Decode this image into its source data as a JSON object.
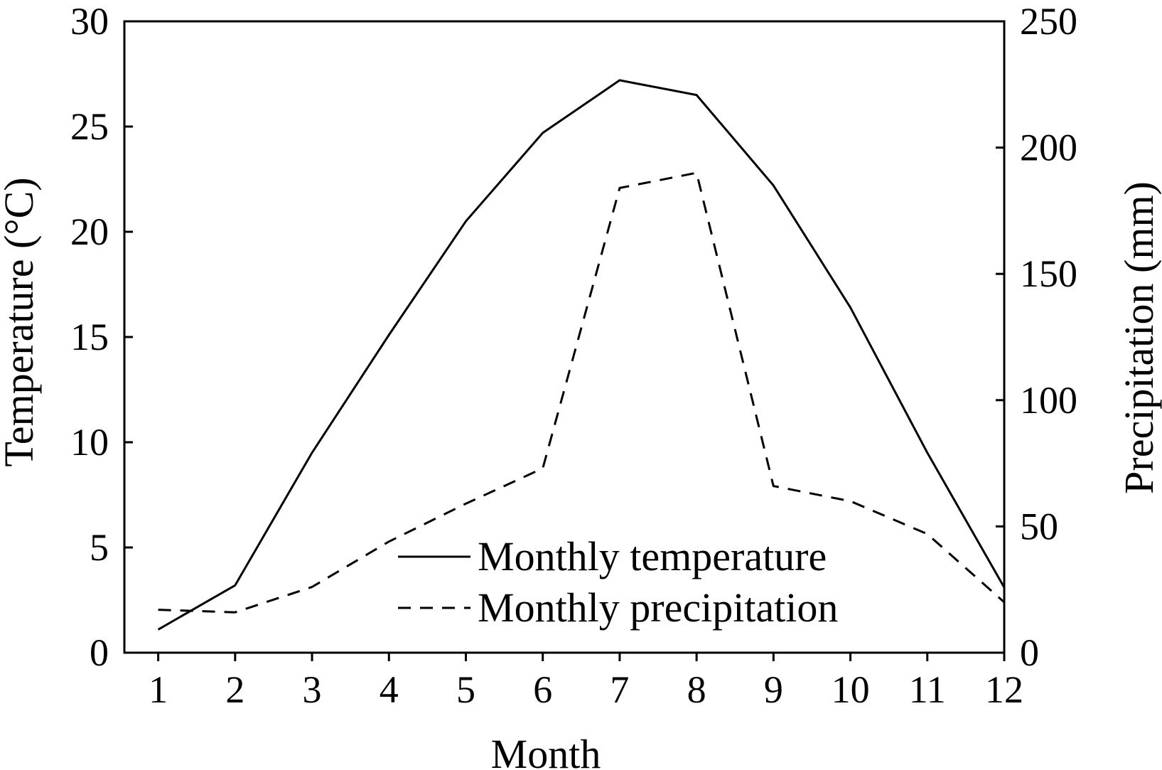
{
  "chart_data": {
    "type": "line",
    "xlabel": "Month",
    "ylabel_left": "Temperature (°C)",
    "ylabel_right": "Precipitation (mm)",
    "x": [
      1,
      2,
      3,
      4,
      5,
      6,
      7,
      8,
      9,
      10,
      11,
      12
    ],
    "x_tick_labels": [
      "1",
      "2",
      "3",
      "4",
      "5",
      "6",
      "7",
      "8",
      "9",
      "10",
      "11",
      "12"
    ],
    "ylim_left": [
      0,
      30
    ],
    "ylim_right": [
      0,
      250
    ],
    "y_left_ticks": [
      0,
      5,
      10,
      15,
      20,
      25,
      30
    ],
    "y_right_ticks": [
      0,
      50,
      100,
      150,
      200,
      250
    ],
    "grid": false,
    "legend_position": "bottom-center",
    "series": [
      {
        "name": "Monthly temperature",
        "axis": "left",
        "line_style": "solid",
        "color": "#000000",
        "values": [
          1.1,
          3.2,
          9.5,
          15.1,
          20.5,
          24.7,
          27.2,
          26.5,
          22.2,
          16.4,
          9.5,
          3.1
        ]
      },
      {
        "name": "Monthly precipitation",
        "axis": "right",
        "line_style": "dashed",
        "color": "#000000",
        "values": [
          17,
          16,
          26,
          44,
          59,
          73,
          184,
          190,
          66,
          60,
          47,
          20
        ]
      }
    ]
  }
}
